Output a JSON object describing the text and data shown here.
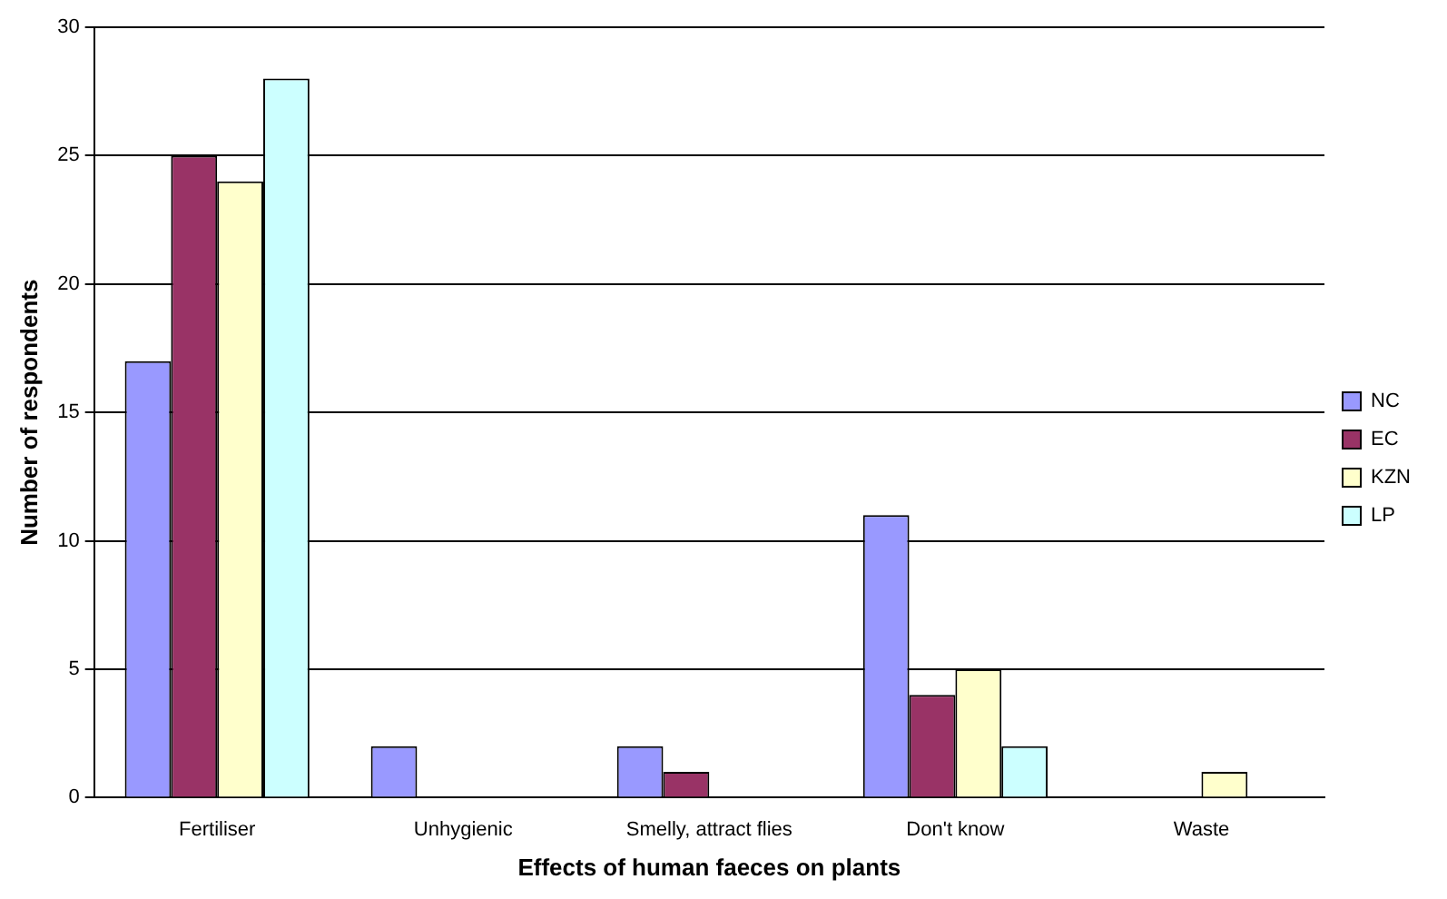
{
  "chart_data": {
    "type": "bar",
    "xlabel": "Effects of human faeces on plants",
    "ylabel": "Number of respondents",
    "categories": [
      "Fertiliser",
      "Unhygienic",
      "Smelly, attract flies",
      "Don't know",
      "Waste"
    ],
    "series": [
      {
        "name": "NC",
        "color": "#9999ff",
        "values": [
          17,
          2,
          2,
          11,
          0
        ]
      },
      {
        "name": "EC",
        "color": "#993366",
        "values": [
          25,
          0,
          1,
          4,
          0
        ]
      },
      {
        "name": "KZN",
        "color": "#ffffcc",
        "values": [
          24,
          0,
          0,
          5,
          1
        ]
      },
      {
        "name": "LP",
        "color": "#ccffff",
        "values": [
          28,
          0,
          0,
          2,
          0
        ]
      }
    ],
    "ylim": [
      0,
      30
    ],
    "yticks": [
      0,
      5,
      10,
      15,
      20,
      25,
      30
    ],
    "grid": "y",
    "legend": "right"
  }
}
